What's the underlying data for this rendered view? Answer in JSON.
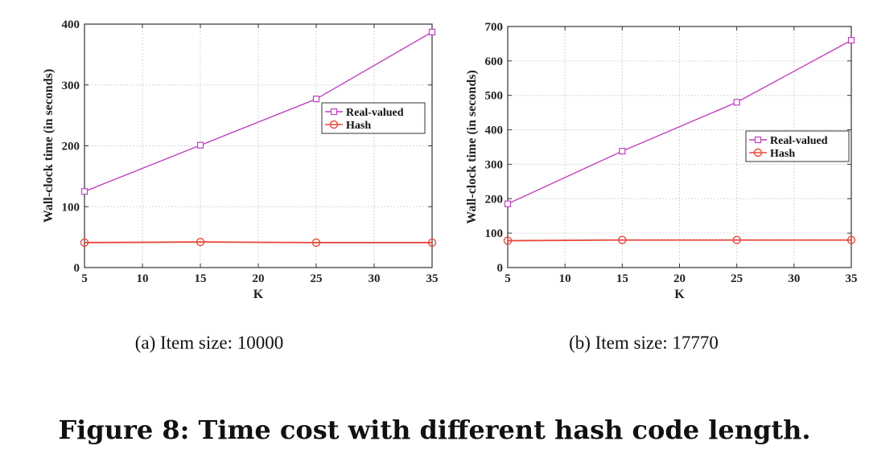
{
  "figure_caption": "Figure 8: Time cost with different hash code length.",
  "colors": {
    "real_valued": "#c040c0",
    "hash": "#e8483a"
  },
  "chart_data": [
    {
      "type": "line",
      "caption": "(a)  Item size: 10000",
      "xlabel": "K",
      "ylabel": "Wall-clock time (in seconds)",
      "xlim": [
        5,
        35
      ],
      "ylim": [
        0,
        400
      ],
      "xticks": [
        5,
        10,
        15,
        20,
        25,
        30,
        35
      ],
      "yticks": [
        0,
        100,
        200,
        300,
        400
      ],
      "grid": true,
      "legend_position": "right",
      "x": [
        5,
        15,
        25,
        35
      ],
      "series": [
        {
          "name": "Real-valued",
          "marker": "square",
          "values": [
            125,
            201,
            277,
            387
          ]
        },
        {
          "name": "Hash",
          "marker": "circle",
          "values": [
            41,
            42,
            41,
            41
          ]
        }
      ]
    },
    {
      "type": "line",
      "caption": "(b)  Item size: 17770",
      "xlabel": "K",
      "ylabel": "Wall-clock time (in seconds)",
      "xlim": [
        5,
        35
      ],
      "ylim": [
        0,
        700
      ],
      "xticks": [
        5,
        10,
        15,
        20,
        25,
        30,
        35
      ],
      "yticks": [
        0,
        100,
        200,
        300,
        400,
        500,
        600,
        700
      ],
      "grid": true,
      "legend_position": "right",
      "x": [
        5,
        15,
        25,
        35
      ],
      "series": [
        {
          "name": "Real-valued",
          "marker": "square",
          "values": [
            185,
            338,
            480,
            660
          ]
        },
        {
          "name": "Hash",
          "marker": "circle",
          "values": [
            78,
            80,
            80,
            80
          ]
        }
      ]
    }
  ]
}
